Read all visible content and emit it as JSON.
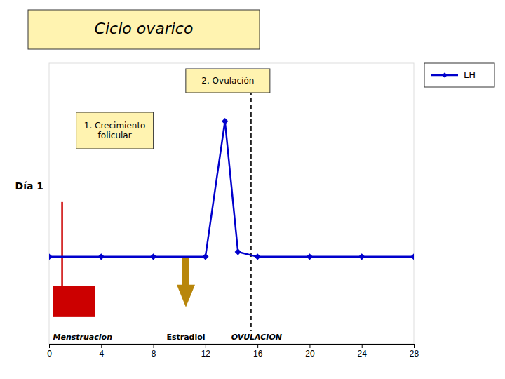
{
  "chart_data": {
    "type": "line",
    "title": "Ciclo ovarico",
    "x": [
      0,
      4,
      8,
      12,
      13.5,
      14.5,
      16,
      20,
      24,
      28
    ],
    "series": [
      {
        "name": "LH",
        "color": "#0000CC",
        "marker": "diamond",
        "values": [
          0,
          0,
          0,
          0,
          2.8,
          0.1,
          0,
          0,
          0,
          0
        ]
      }
    ],
    "xlim": [
      0,
      28
    ],
    "ylim": [
      -1.8,
      4.0
    ],
    "xticks": [
      0,
      4,
      8,
      12,
      16,
      20,
      24,
      28
    ],
    "tick_labels": "x",
    "legend": "top-right",
    "annotations": [
      {
        "text": "Día 1"
      },
      {
        "text": "Menstruacion",
        "x": 0.3,
        "width": 3.2,
        "color": "#CC0000"
      },
      {
        "text": "Estradiol",
        "x": 10.5,
        "color": "#B8860B"
      },
      {
        "text": "OVULACION",
        "x": 15.5
      },
      {
        "text": "1. Crecimiento\nfolicular"
      },
      {
        "text": "2. Ovulación"
      }
    ]
  }
}
